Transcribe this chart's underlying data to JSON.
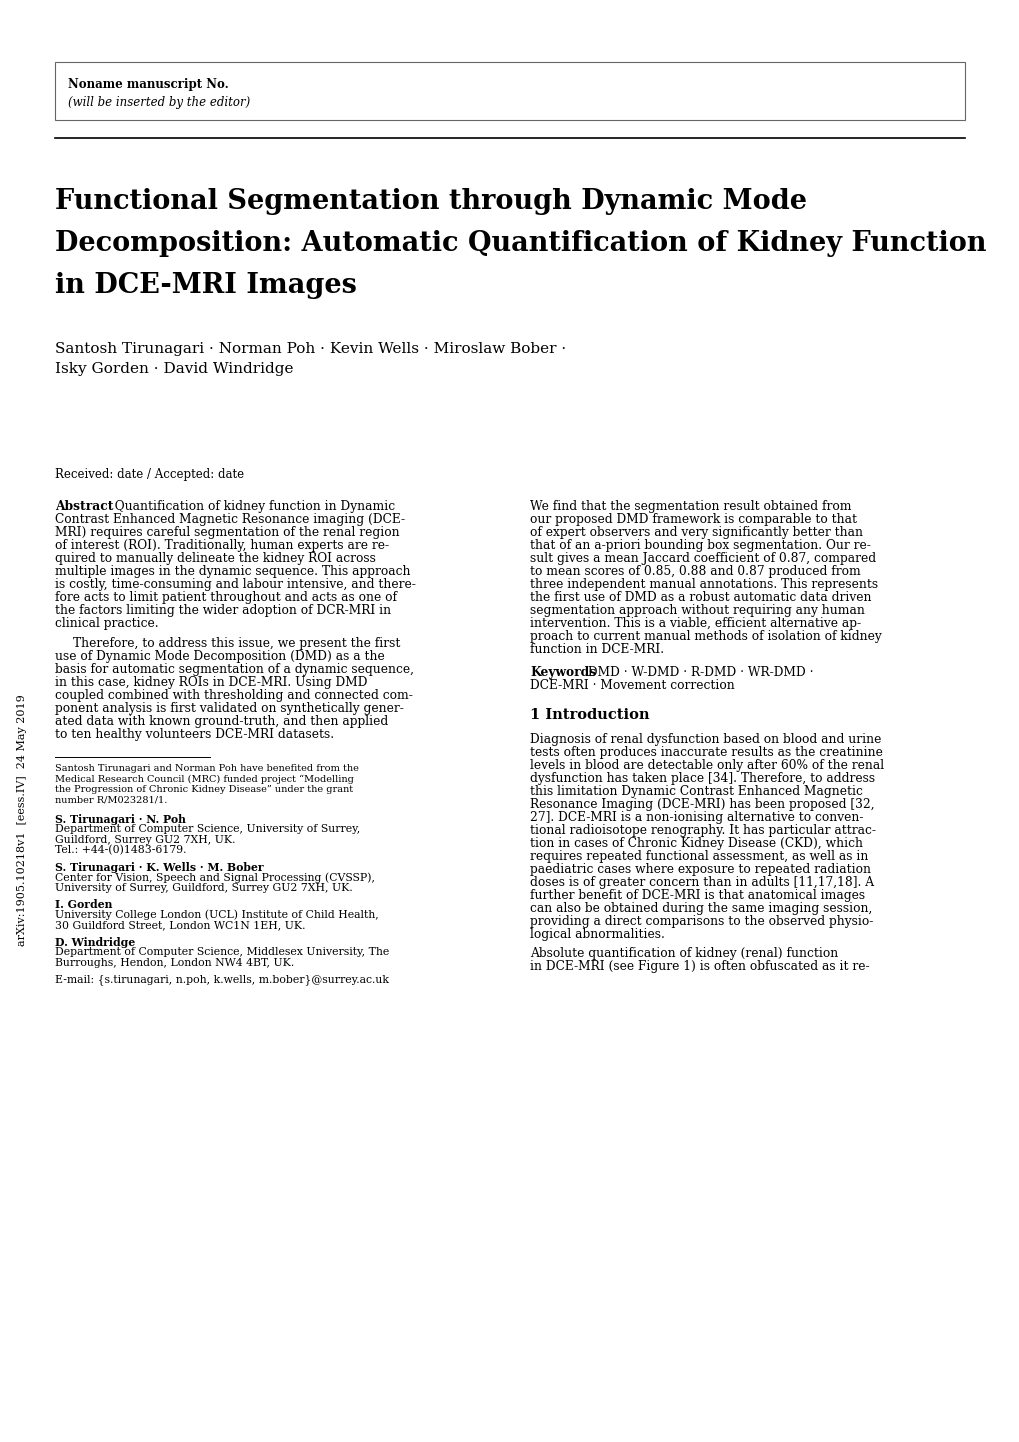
{
  "bg_color": "#ffffff",
  "header_box_text_line1": "Noname manuscript No.",
  "header_box_text_line2": "(will be inserted by the editor)",
  "title": "Functional Segmentation through Dynamic Mode\nDecomposition: Automatic Quantification of Kidney Function\nin DCE-MRI Images",
  "authors_line1": "Santosh Tirunagari · Norman Poh · Kevin Wells · Miroslaw Bober ·",
  "authors_line2": "Isky Gorden · David Windridge",
  "received": "Received: date / Accepted: date",
  "arxiv_label": "arXiv:1905.10218v1  [eess.IV]  24 May 2019",
  "left_para1_lines": [
    "Quantification of kidney function in Dynamic",
    "Contrast Enhanced Magnetic Resonance imaging (DCE-",
    "MRI) requires careful segmentation of the renal region",
    "of interest (ROI). Traditionally, human experts are re-",
    "quired to manually delineate the kidney ROI across",
    "multiple images in the dynamic sequence. This approach",
    "is costly, time-consuming and labour intensive, and there-",
    "fore acts to limit patient throughout and acts as one of",
    "the factors limiting the wider adoption of DCR-MRI in",
    "clinical practice."
  ],
  "left_para2_lines": [
    "Therefore, to address this issue, we present the first",
    "use of Dynamic Mode Decomposition (DMD) as a the",
    "basis for automatic segmentation of a dynamic sequence,",
    "in this case, kidney ROIs in DCE-MRI. Using DMD",
    "coupled combined with thresholding and connected com-",
    "ponent analysis is first validated on synthetically gener-",
    "ated data with known ground-truth, and then applied",
    "to ten healthy volunteers DCE-MRI datasets."
  ],
  "right_para1_lines": [
    "We find that the segmentation result obtained from",
    "our proposed DMD framework is comparable to that",
    "of expert observers and very significantly better than",
    "that of an a-priori bounding box segmentation. Our re-",
    "sult gives a mean Jaccard coefficient of 0.87, compared",
    "to mean scores of 0.85, 0.88 and 0.87 produced from",
    "three independent manual annotations. This represents",
    "the first use of DMD as a robust automatic data driven",
    "segmentation approach without requiring any human",
    "intervention. This is a viable, efficient alternative ap-",
    "proach to current manual methods of isolation of kidney",
    "function in DCE-MRI."
  ],
  "kw_line1": "DMD · W-DMD · R-DMD · WR-DMD ·",
  "kw_line2": "DCE-MRI · Movement correction",
  "section1_title": "1 Introduction",
  "right_sect1_lines": [
    "Diagnosis of renal dysfunction based on blood and urine",
    "tests often produces inaccurate results as the creatinine",
    "levels in blood are detectable only after 60% of the renal",
    "dysfunction has taken place [34]. Therefore, to address",
    "this limitation Dynamic Contrast Enhanced Magnetic",
    "Resonance Imaging (DCE-MRI) has been proposed [32,",
    "27]. DCE-MRI is a non-ionising alternative to conven-",
    "tional radioisotope renography. It has particular attrac-",
    "tion in cases of Chronic Kidney Disease (CKD), which",
    "requires repeated functional assessment, as well as in",
    "paediatric cases where exposure to repeated radiation",
    "doses is of greater concern than in adults [11,17,18]. A",
    "further benefit of DCE-MRI is that anatomical images",
    "can also be obtained during the same imaging session,",
    "providing a direct comparisons to the observed physio-",
    "logical abnormalities.",
    "",
    "Absolute quantification of kidney (renal) function",
    "in DCE-MRI (see Figure 1) is often obfuscated as it re-"
  ],
  "footnote_lines": [
    "Santosh Tirunagari and Norman Poh have benefited from the",
    "Medical Research Council (MRC) funded project “Modelling",
    "the Progression of Chronic Kidney Disease” under the grant",
    "number R/M023281/1."
  ],
  "address_lines": [
    [
      "bold",
      "S. Tirunagari · N. Poh"
    ],
    [
      "normal",
      "Department of Computer Science, University of Surrey,"
    ],
    [
      "normal",
      "Guildford, Surrey GU2 7XH, UK."
    ],
    [
      "normal",
      "Tel.: +44-(0)1483-6179."
    ],
    [
      "gap",
      ""
    ],
    [
      "bold",
      "S. Tirunagari · K. Wells · M. Bober"
    ],
    [
      "normal",
      "Center for Vision, Speech and Signal Processing (CVSSP),"
    ],
    [
      "normal",
      "University of Surrey, Guildford, Surrey GU2 7XH, UK."
    ],
    [
      "gap",
      ""
    ],
    [
      "bold",
      "I. Gorden"
    ],
    [
      "normal",
      "University College London (UCL) Institute of Child Health,"
    ],
    [
      "normal",
      "30 Guildford Street, London WC1N 1EH, UK."
    ],
    [
      "gap",
      ""
    ],
    [
      "bold",
      "D. Windridge"
    ],
    [
      "normal",
      "Department of Computer Science, Middlesex University, The"
    ],
    [
      "normal",
      "Burroughs, Hendon, London NW4 4BT, UK."
    ],
    [
      "gap",
      ""
    ],
    [
      "normal",
      "E-mail: {s.tirunagari, n.poh, k.wells, m.bober}@surrey.ac.uk"
    ]
  ]
}
